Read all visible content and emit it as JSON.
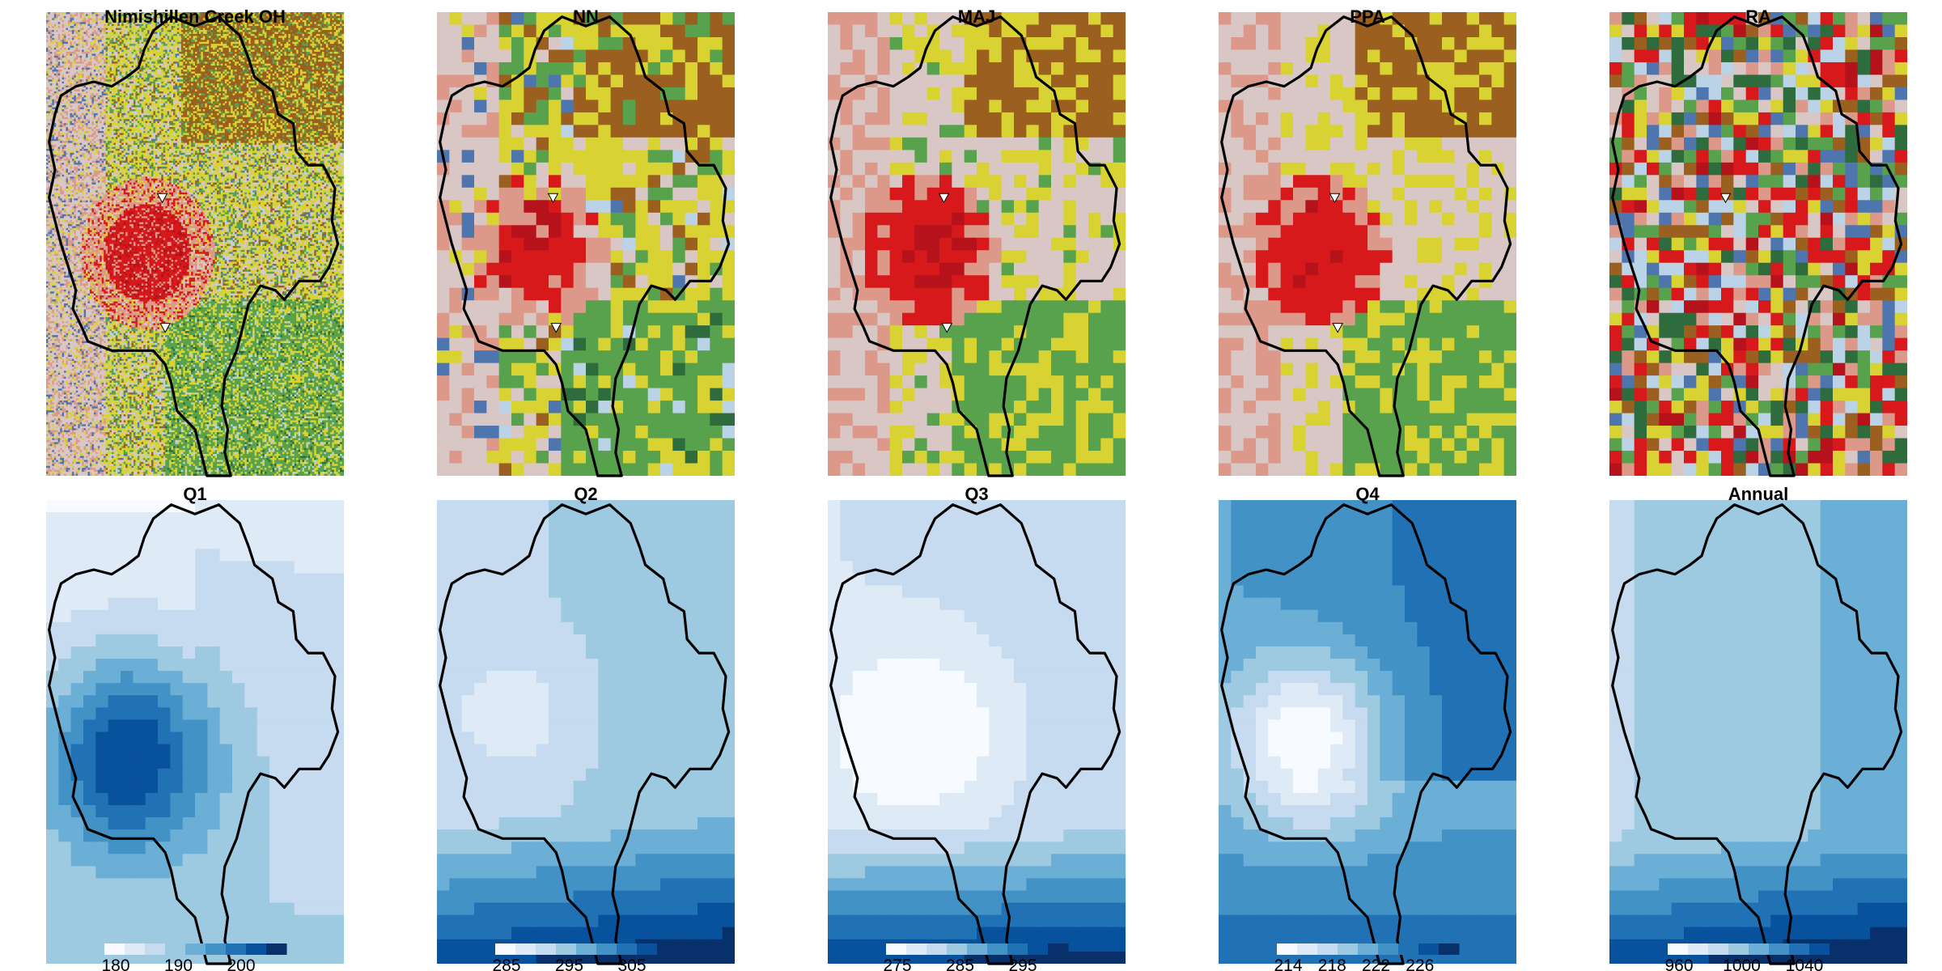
{
  "figure": {
    "landcover_palette": [
      "#d9c7c5",
      "#dc9989",
      "#d7191c",
      "#b5121b",
      "#d8d332",
      "#9b5f1f",
      "#59a24d",
      "#2e6b3d",
      "#bad3e6",
      "#4e75ad",
      "#c6cd8a",
      "#ffffff"
    ],
    "blues_palette": [
      "#f7fbff",
      "#deebf7",
      "#c6dbef",
      "#9ecae1",
      "#6baed6",
      "#4292c6",
      "#2171b5",
      "#08519c",
      "#08306b"
    ],
    "landcover_panels": [
      {
        "title": "Nimishillen Creek OH",
        "resolution": "fine"
      },
      {
        "title": "NN",
        "resolution": "coarse",
        "method": "nearest-neighbor"
      },
      {
        "title": "MAJ",
        "resolution": "coarse",
        "method": "majority"
      },
      {
        "title": "PPA",
        "resolution": "coarse",
        "method": "ppa"
      },
      {
        "title": "RA",
        "resolution": "coarse",
        "method": "random"
      }
    ],
    "precip_panels": [
      {
        "title": "Q1",
        "ticks": [
          "180",
          "190",
          "200"
        ]
      },
      {
        "title": "Q2",
        "ticks": [
          "285",
          "295",
          "305"
        ]
      },
      {
        "title": "Q3",
        "ticks": [
          "275",
          "285",
          "295"
        ]
      },
      {
        "title": "Q4",
        "ticks": [
          "214",
          "218",
          "222",
          "226"
        ]
      },
      {
        "title": "Annual",
        "ticks": [
          "960",
          "1000",
          "1040"
        ]
      }
    ]
  }
}
